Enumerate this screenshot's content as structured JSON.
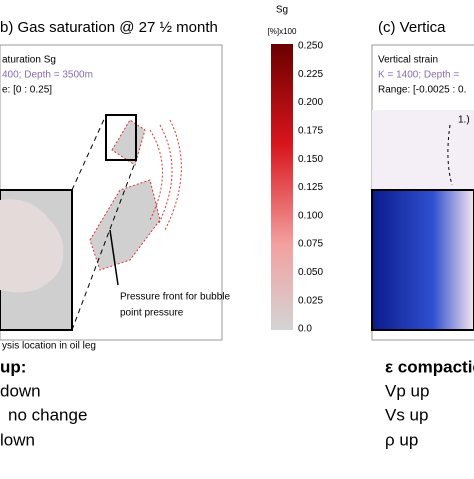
{
  "left_panel": {
    "title": "b) Gas saturation @ 27 ½ month",
    "info": [
      "aturation Sg",
      "400; Depth = 3500m",
      "e: [0 : 0.25]"
    ],
    "annotation": [
      "Pressure front for bubble",
      "point pressure"
    ],
    "caption": "ysis location in oil leg"
  },
  "colorbar": {
    "title": "Sg",
    "unit": "[%]x100",
    "ticks": [
      "0.250",
      "0.225",
      "0.200",
      "0.175",
      "0.150",
      "0.125",
      "0.100",
      "0.075",
      "0.050",
      "0.025",
      "0.0"
    ]
  },
  "right_panel": {
    "title": "(c) Vertica",
    "info": [
      "Vertical strain",
      "K = 1400; Depth =",
      "Range: [-0.0025 : 0."
    ],
    "marker": "1.)"
  },
  "left_list": {
    "heading": " up:",
    "items": [
      "down",
      "no change",
      "lown"
    ]
  },
  "right_list": {
    "heading": "ε compactio",
    "items": [
      "Vp up",
      "Vs up",
      "ρ up"
    ]
  }
}
